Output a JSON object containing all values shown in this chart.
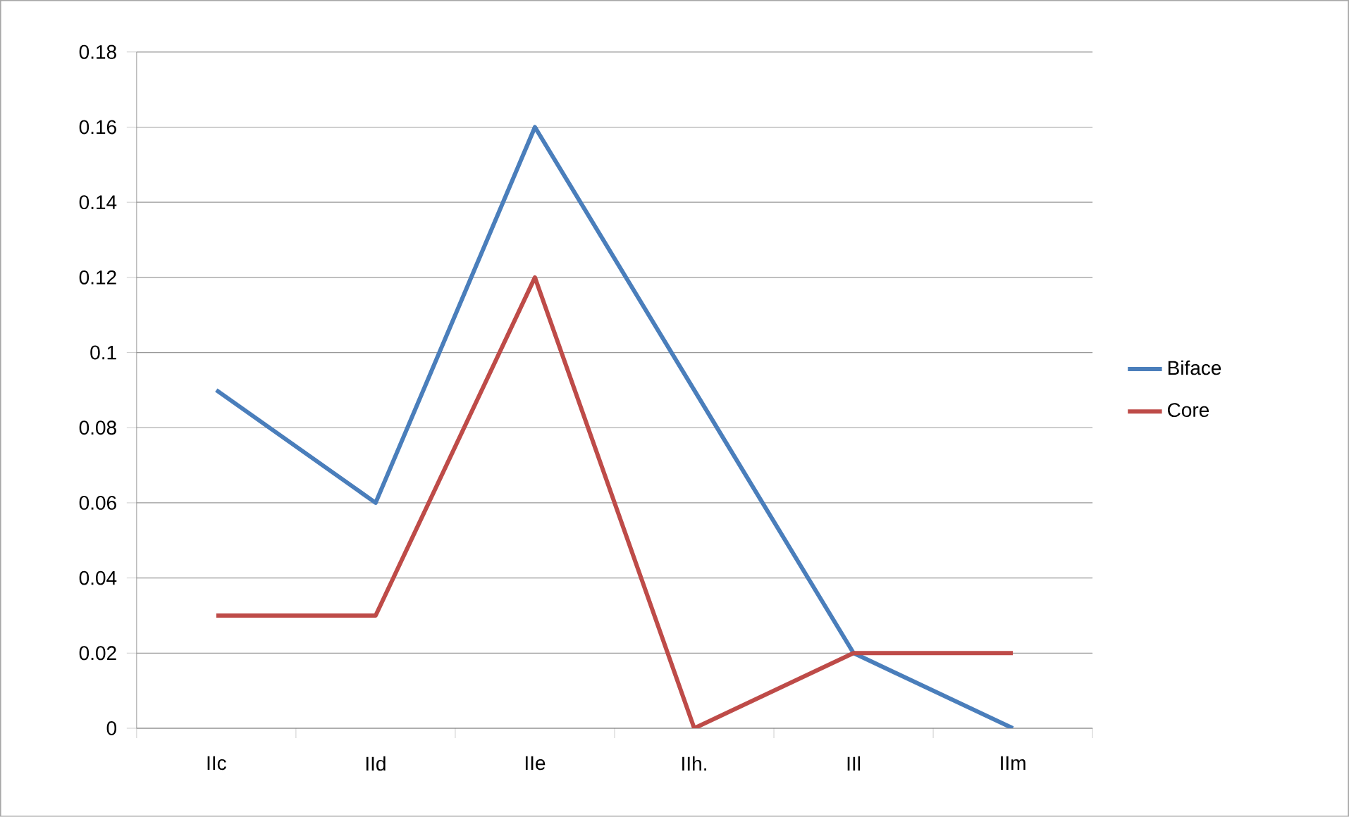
{
  "chart_data": {
    "type": "line",
    "categories": [
      "IIc",
      "IId",
      "IIe",
      "IIh.",
      "IIl",
      "IIm"
    ],
    "series": [
      {
        "name": "Biface",
        "color": "#4a7ebb",
        "values": [
          0.09,
          0.06,
          0.16,
          0.09,
          0.02,
          0
        ]
      },
      {
        "name": "Core",
        "color": "#be4b48",
        "values": [
          0.03,
          0.03,
          0.12,
          0,
          0.02,
          0.02
        ]
      }
    ],
    "ylim": [
      0,
      0.18
    ],
    "yticks": [
      0,
      0.02,
      0.04,
      0.06,
      0.08,
      0.1,
      0.12,
      0.14,
      0.16,
      0.18
    ],
    "grid": "y",
    "legend": "right",
    "marker": "none",
    "line_style": "solid"
  }
}
